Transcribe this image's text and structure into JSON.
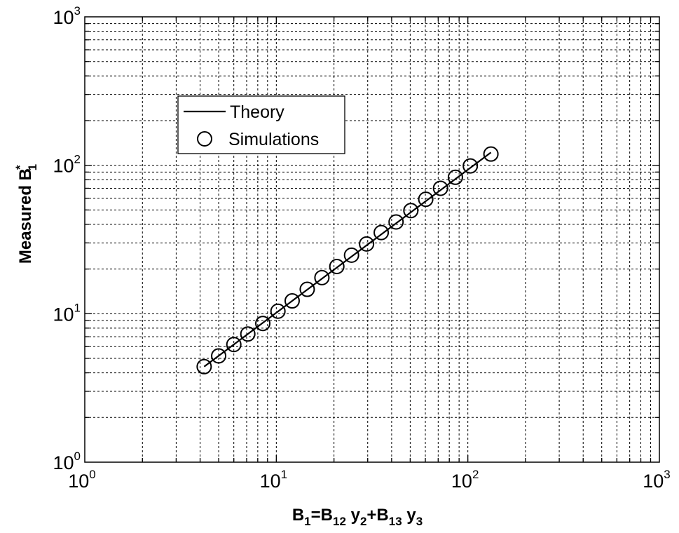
{
  "chart_data": {
    "type": "scatter",
    "x_scale": "log",
    "y_scale": "log",
    "xlim": [
      1,
      1000
    ],
    "ylim": [
      1,
      1000
    ],
    "grid": true,
    "grid_style": "dashed",
    "x_ticks": [
      {
        "base": "10",
        "exp": "0",
        "value": 1
      },
      {
        "base": "10",
        "exp": "1",
        "value": 10
      },
      {
        "base": "10",
        "exp": "2",
        "value": 100
      },
      {
        "base": "10",
        "exp": "3",
        "value": 1000
      }
    ],
    "y_ticks": [
      {
        "base": "10",
        "exp": "0",
        "value": 1
      },
      {
        "base": "10",
        "exp": "1",
        "value": 10
      },
      {
        "base": "10",
        "exp": "2",
        "value": 100
      },
      {
        "base": "10",
        "exp": "3",
        "value": 1000
      }
    ],
    "xlabel": {
      "parts": [
        {
          "t": "B",
          "sub": false
        },
        {
          "t": "1",
          "sub": true
        },
        {
          "t": "=B",
          "sub": false
        },
        {
          "t": "12",
          "sub": true
        },
        {
          "t": " y",
          "sub": false
        },
        {
          "t": "2",
          "sub": true
        },
        {
          "t": "+B",
          "sub": false
        },
        {
          "t": "13",
          "sub": true
        },
        {
          "t": " y",
          "sub": false
        },
        {
          "t": "3",
          "sub": true
        }
      ]
    },
    "ylabel": {
      "main": "Measured B",
      "sup": "*",
      "sub": "1"
    },
    "legend": {
      "placement": "upper-left",
      "entries": [
        {
          "label": "Theory",
          "marker": "line"
        },
        {
          "label": "Simulations",
          "marker": "circle"
        }
      ]
    },
    "series": [
      {
        "name": "Theory",
        "style": "line",
        "color": "#000000",
        "x": [
          4.2,
          132
        ],
        "y": [
          4.4,
          122
        ]
      },
      {
        "name": "Simulations",
        "style": "marker-circle",
        "color": "#000000",
        "x": [
          4.2,
          5.0,
          6.0,
          7.1,
          8.5,
          10.2,
          12.1,
          14.5,
          17.3,
          20.7,
          24.7,
          29.6,
          35.3,
          42.2,
          50.4,
          60.3,
          72.0,
          86.1,
          103,
          132
        ],
        "y": [
          4.4,
          5.2,
          6.2,
          7.3,
          8.6,
          10.4,
          12.2,
          14.6,
          17.5,
          20.8,
          24.8,
          29.5,
          35.2,
          41.5,
          49.5,
          59.0,
          70.0,
          83.0,
          99.0,
          119
        ]
      }
    ]
  }
}
